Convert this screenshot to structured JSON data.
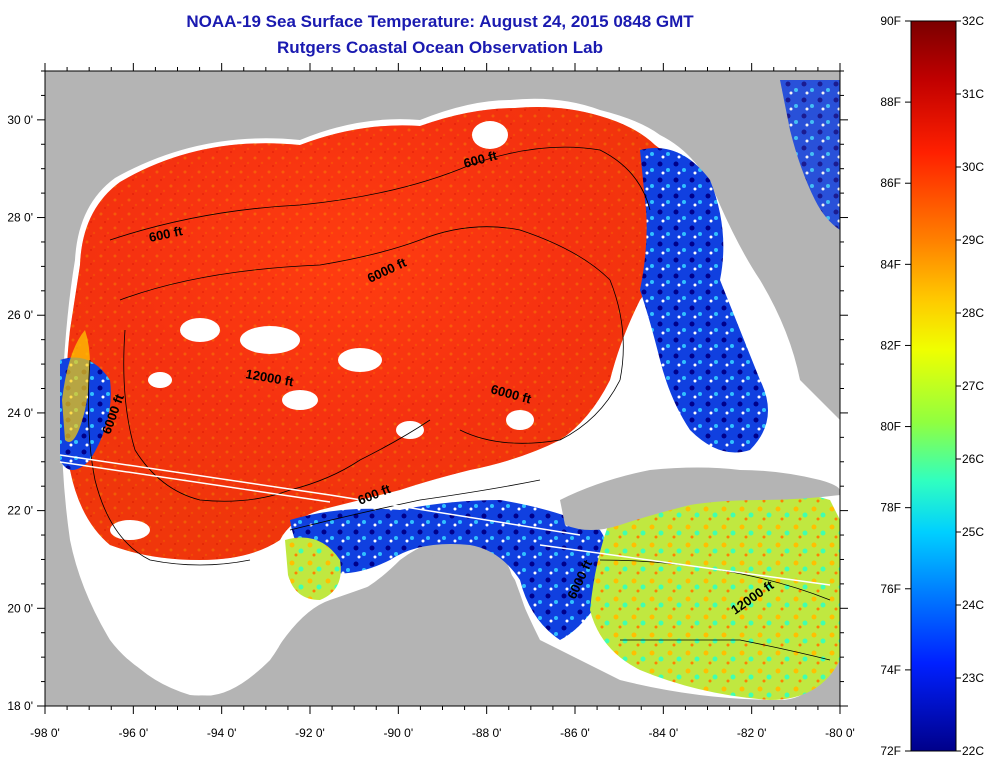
{
  "header": {
    "title_line1": "NOAA-19 Sea Surface Temperature:  August 24, 2015 0848 GMT",
    "title_line2": "Rutgers Coastal Ocean Observation Lab"
  },
  "map": {
    "x_ticks": [
      "-98 0'",
      "-96 0'",
      "-94 0'",
      "-92 0'",
      "-90 0'",
      "-88 0'",
      "-86 0'",
      "-84 0'",
      "-82 0'",
      "-80 0'"
    ],
    "y_ticks": [
      "30 0'",
      "28 0'",
      "26 0'",
      "24 0'",
      "22 0'",
      "20 0'",
      "18 0'"
    ],
    "contour_labels": [
      "600 ft",
      "600 ft",
      "6000 ft",
      "12000 ft",
      "6000 ft",
      "6000 ft",
      "600 ft",
      "6000 ft",
      "12000 ft"
    ]
  },
  "colorbar": {
    "fahrenheit_labels": [
      "90F",
      "88F",
      "86F",
      "84F",
      "82F",
      "80F",
      "78F",
      "76F",
      "74F",
      "72F"
    ],
    "celsius_labels": [
      "32C",
      "31C",
      "30C",
      "29C",
      "28C",
      "27C",
      "26C",
      "25C",
      "24C",
      "23C",
      "22C"
    ],
    "colors": [
      "#7a0000",
      "#c80000",
      "#ff3000",
      "#ff8000",
      "#ffc000",
      "#f0ff00",
      "#90ff40",
      "#30ffb0",
      "#00d0ff",
      "#0080ff",
      "#0030ff",
      "#0000c0",
      "#00008a"
    ]
  }
}
